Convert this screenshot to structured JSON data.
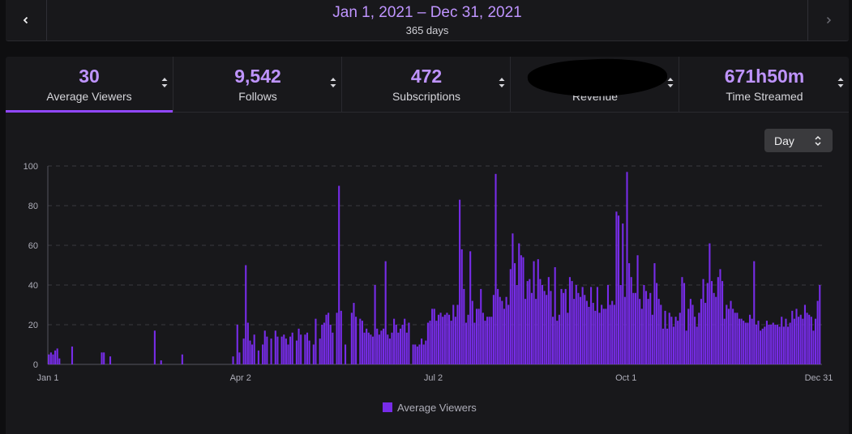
{
  "date_bar": {
    "range": "Jan 1, 2021 – Dec 31, 2021",
    "days": "365 days"
  },
  "tabs": [
    {
      "value": "30",
      "label": "Average Viewers",
      "active": true
    },
    {
      "value": "9,542",
      "label": "Follows",
      "active": false
    },
    {
      "value": "472",
      "label": "Subscriptions",
      "active": false
    },
    {
      "value": "",
      "label": "Revenue",
      "active": false,
      "redacted": true
    },
    {
      "value": "671h50m",
      "label": "Time Streamed",
      "active": false
    }
  ],
  "interval_select": {
    "value": "Day"
  },
  "colors": {
    "accent": "#bf94ff",
    "bar": "#772ce8",
    "active_tab": "#9147ff"
  },
  "chart_data": {
    "type": "bar",
    "title": "",
    "xlabel": "",
    "ylabel": "",
    "ylim": [
      0,
      100
    ],
    "yticks": [
      0,
      20,
      40,
      60,
      80,
      100
    ],
    "x_ticks": [
      {
        "day": 1,
        "label": "Jan 1"
      },
      {
        "day": 92,
        "label": "Apr 2"
      },
      {
        "day": 183,
        "label": "Jul 2"
      },
      {
        "day": 274,
        "label": "Oct 1"
      },
      {
        "day": 365,
        "label": "Dec 31"
      }
    ],
    "series": [
      {
        "name": "Average Viewers"
      }
    ],
    "bars": [
      [
        1,
        5
      ],
      [
        2,
        6
      ],
      [
        3,
        5
      ],
      [
        4,
        7
      ],
      [
        5,
        8
      ],
      [
        6,
        3
      ],
      [
        12,
        9
      ],
      [
        26,
        6
      ],
      [
        27,
        6
      ],
      [
        30,
        4
      ],
      [
        51,
        17
      ],
      [
        54,
        2
      ],
      [
        64,
        5
      ],
      [
        88,
        4
      ],
      [
        90,
        20
      ],
      [
        91,
        6
      ],
      [
        93,
        13
      ],
      [
        94,
        50
      ],
      [
        95,
        21
      ],
      [
        96,
        12
      ],
      [
        97,
        10
      ],
      [
        98,
        15
      ],
      [
        100,
        7
      ],
      [
        102,
        10
      ],
      [
        103,
        17
      ],
      [
        104,
        14
      ],
      [
        106,
        13
      ],
      [
        108,
        17
      ],
      [
        109,
        14
      ],
      [
        111,
        14
      ],
      [
        112,
        15
      ],
      [
        113,
        13
      ],
      [
        114,
        10
      ],
      [
        115,
        14
      ],
      [
        116,
        16
      ],
      [
        118,
        12
      ],
      [
        119,
        18
      ],
      [
        120,
        15
      ],
      [
        122,
        15
      ],
      [
        123,
        16
      ],
      [
        124,
        12
      ],
      [
        126,
        10
      ],
      [
        127,
        23
      ],
      [
        129,
        13
      ],
      [
        130,
        20
      ],
      [
        131,
        21
      ],
      [
        132,
        25
      ],
      [
        133,
        26
      ],
      [
        134,
        20
      ],
      [
        135,
        16
      ],
      [
        137,
        26
      ],
      [
        138,
        90
      ],
      [
        139,
        27
      ],
      [
        141,
        10
      ],
      [
        144,
        26
      ],
      [
        145,
        31
      ],
      [
        146,
        24
      ],
      [
        148,
        23
      ],
      [
        149,
        22
      ],
      [
        150,
        16
      ],
      [
        151,
        18
      ],
      [
        152,
        16
      ],
      [
        153,
        15
      ],
      [
        154,
        14
      ],
      [
        155,
        40
      ],
      [
        156,
        18
      ],
      [
        157,
        15
      ],
      [
        158,
        17
      ],
      [
        159,
        18
      ],
      [
        160,
        52
      ],
      [
        161,
        15
      ],
      [
        162,
        13
      ],
      [
        163,
        16
      ],
      [
        164,
        23
      ],
      [
        165,
        20
      ],
      [
        166,
        16
      ],
      [
        167,
        18
      ],
      [
        168,
        20
      ],
      [
        169,
        23
      ],
      [
        170,
        16
      ],
      [
        171,
        21
      ],
      [
        173,
        10
      ],
      [
        174,
        10
      ],
      [
        175,
        9
      ],
      [
        176,
        10
      ],
      [
        177,
        13
      ],
      [
        178,
        10
      ],
      [
        179,
        12
      ],
      [
        180,
        21
      ],
      [
        181,
        22
      ],
      [
        182,
        28
      ],
      [
        183,
        28
      ],
      [
        184,
        22
      ],
      [
        185,
        25
      ],
      [
        186,
        26
      ],
      [
        187,
        24
      ],
      [
        188,
        25
      ],
      [
        189,
        26
      ],
      [
        190,
        25
      ],
      [
        191,
        22
      ],
      [
        192,
        30
      ],
      [
        193,
        24
      ],
      [
        194,
        30
      ],
      [
        195,
        83
      ],
      [
        196,
        58
      ],
      [
        197,
        38
      ],
      [
        198,
        21
      ],
      [
        199,
        25
      ],
      [
        200,
        57
      ],
      [
        201,
        32
      ],
      [
        202,
        21
      ],
      [
        203,
        28
      ],
      [
        204,
        28
      ],
      [
        205,
        38
      ],
      [
        206,
        26
      ],
      [
        207,
        22
      ],
      [
        208,
        24
      ],
      [
        209,
        24
      ],
      [
        210,
        24
      ],
      [
        211,
        35
      ],
      [
        212,
        96
      ],
      [
        213,
        38
      ],
      [
        214,
        34
      ],
      [
        215,
        32
      ],
      [
        216,
        28
      ],
      [
        217,
        34
      ],
      [
        218,
        30
      ],
      [
        219,
        48
      ],
      [
        220,
        66
      ],
      [
        221,
        51
      ],
      [
        222,
        40
      ],
      [
        223,
        61
      ],
      [
        224,
        55
      ],
      [
        225,
        54
      ],
      [
        226,
        33
      ],
      [
        227,
        42
      ],
      [
        228,
        43
      ],
      [
        229,
        36
      ],
      [
        230,
        52
      ],
      [
        231,
        33
      ],
      [
        232,
        53
      ],
      [
        233,
        43
      ],
      [
        234,
        40
      ],
      [
        235,
        37
      ],
      [
        236,
        35
      ],
      [
        237,
        44
      ],
      [
        238,
        37
      ],
      [
        239,
        24
      ],
      [
        240,
        49
      ],
      [
        241,
        22
      ],
      [
        242,
        25
      ],
      [
        243,
        38
      ],
      [
        244,
        36
      ],
      [
        245,
        38
      ],
      [
        246,
        26
      ],
      [
        247,
        44
      ],
      [
        248,
        42
      ],
      [
        249,
        33
      ],
      [
        250,
        40
      ],
      [
        251,
        36
      ],
      [
        252,
        34
      ],
      [
        253,
        39
      ],
      [
        254,
        35
      ],
      [
        255,
        32
      ],
      [
        256,
        29
      ],
      [
        257,
        39
      ],
      [
        258,
        31
      ],
      [
        259,
        27
      ],
      [
        260,
        39
      ],
      [
        261,
        26
      ],
      [
        262,
        30
      ],
      [
        263,
        28
      ],
      [
        264,
        28
      ],
      [
        265,
        40
      ],
      [
        266,
        30
      ],
      [
        267,
        32
      ],
      [
        268,
        30
      ],
      [
        269,
        77
      ],
      [
        270,
        75
      ],
      [
        271,
        40
      ],
      [
        272,
        71
      ],
      [
        273,
        34
      ],
      [
        274,
        97
      ],
      [
        275,
        51
      ],
      [
        276,
        44
      ],
      [
        277,
        36
      ],
      [
        278,
        36
      ],
      [
        279,
        55
      ],
      [
        280,
        33
      ],
      [
        281,
        28
      ],
      [
        282,
        40
      ],
      [
        283,
        37
      ],
      [
        284,
        33
      ],
      [
        285,
        36
      ],
      [
        286,
        25
      ],
      [
        287,
        51
      ],
      [
        288,
        41
      ],
      [
        289,
        33
      ],
      [
        290,
        30
      ],
      [
        291,
        18
      ],
      [
        292,
        27
      ],
      [
        293,
        18
      ],
      [
        294,
        26
      ],
      [
        295,
        24
      ],
      [
        296,
        19
      ],
      [
        297,
        24
      ],
      [
        298,
        22
      ],
      [
        299,
        26
      ],
      [
        300,
        44
      ],
      [
        301,
        41
      ],
      [
        302,
        17
      ],
      [
        303,
        28
      ],
      [
        304,
        33
      ],
      [
        305,
        30
      ],
      [
        306,
        24
      ],
      [
        307,
        19
      ],
      [
        308,
        26
      ],
      [
        309,
        33
      ],
      [
        310,
        43
      ],
      [
        311,
        31
      ],
      [
        312,
        41
      ],
      [
        313,
        61
      ],
      [
        314,
        42
      ],
      [
        315,
        36
      ],
      [
        316,
        34
      ],
      [
        317,
        44
      ],
      [
        318,
        48
      ],
      [
        319,
        42
      ],
      [
        320,
        23
      ],
      [
        321,
        30
      ],
      [
        322,
        28
      ],
      [
        323,
        32
      ],
      [
        324,
        28
      ],
      [
        325,
        26
      ],
      [
        326,
        26
      ],
      [
        327,
        23
      ],
      [
        328,
        23
      ],
      [
        329,
        22
      ],
      [
        330,
        21
      ],
      [
        331,
        21
      ],
      [
        332,
        25
      ],
      [
        333,
        23
      ],
      [
        334,
        52
      ],
      [
        335,
        20
      ],
      [
        336,
        22
      ],
      [
        337,
        17
      ],
      [
        338,
        18
      ],
      [
        339,
        19
      ],
      [
        340,
        22
      ],
      [
        341,
        20
      ],
      [
        342,
        20
      ],
      [
        343,
        21
      ],
      [
        344,
        20
      ],
      [
        345,
        20
      ],
      [
        346,
        19
      ],
      [
        347,
        24
      ],
      [
        348,
        19
      ],
      [
        349,
        23
      ],
      [
        350,
        19
      ],
      [
        351,
        21
      ],
      [
        352,
        27
      ],
      [
        353,
        23
      ],
      [
        354,
        28
      ],
      [
        355,
        24
      ],
      [
        356,
        25
      ],
      [
        357,
        23
      ],
      [
        358,
        30
      ],
      [
        359,
        26
      ],
      [
        360,
        25
      ],
      [
        361,
        24
      ],
      [
        362,
        17
      ],
      [
        363,
        23
      ],
      [
        364,
        32
      ],
      [
        365,
        40
      ]
    ]
  }
}
